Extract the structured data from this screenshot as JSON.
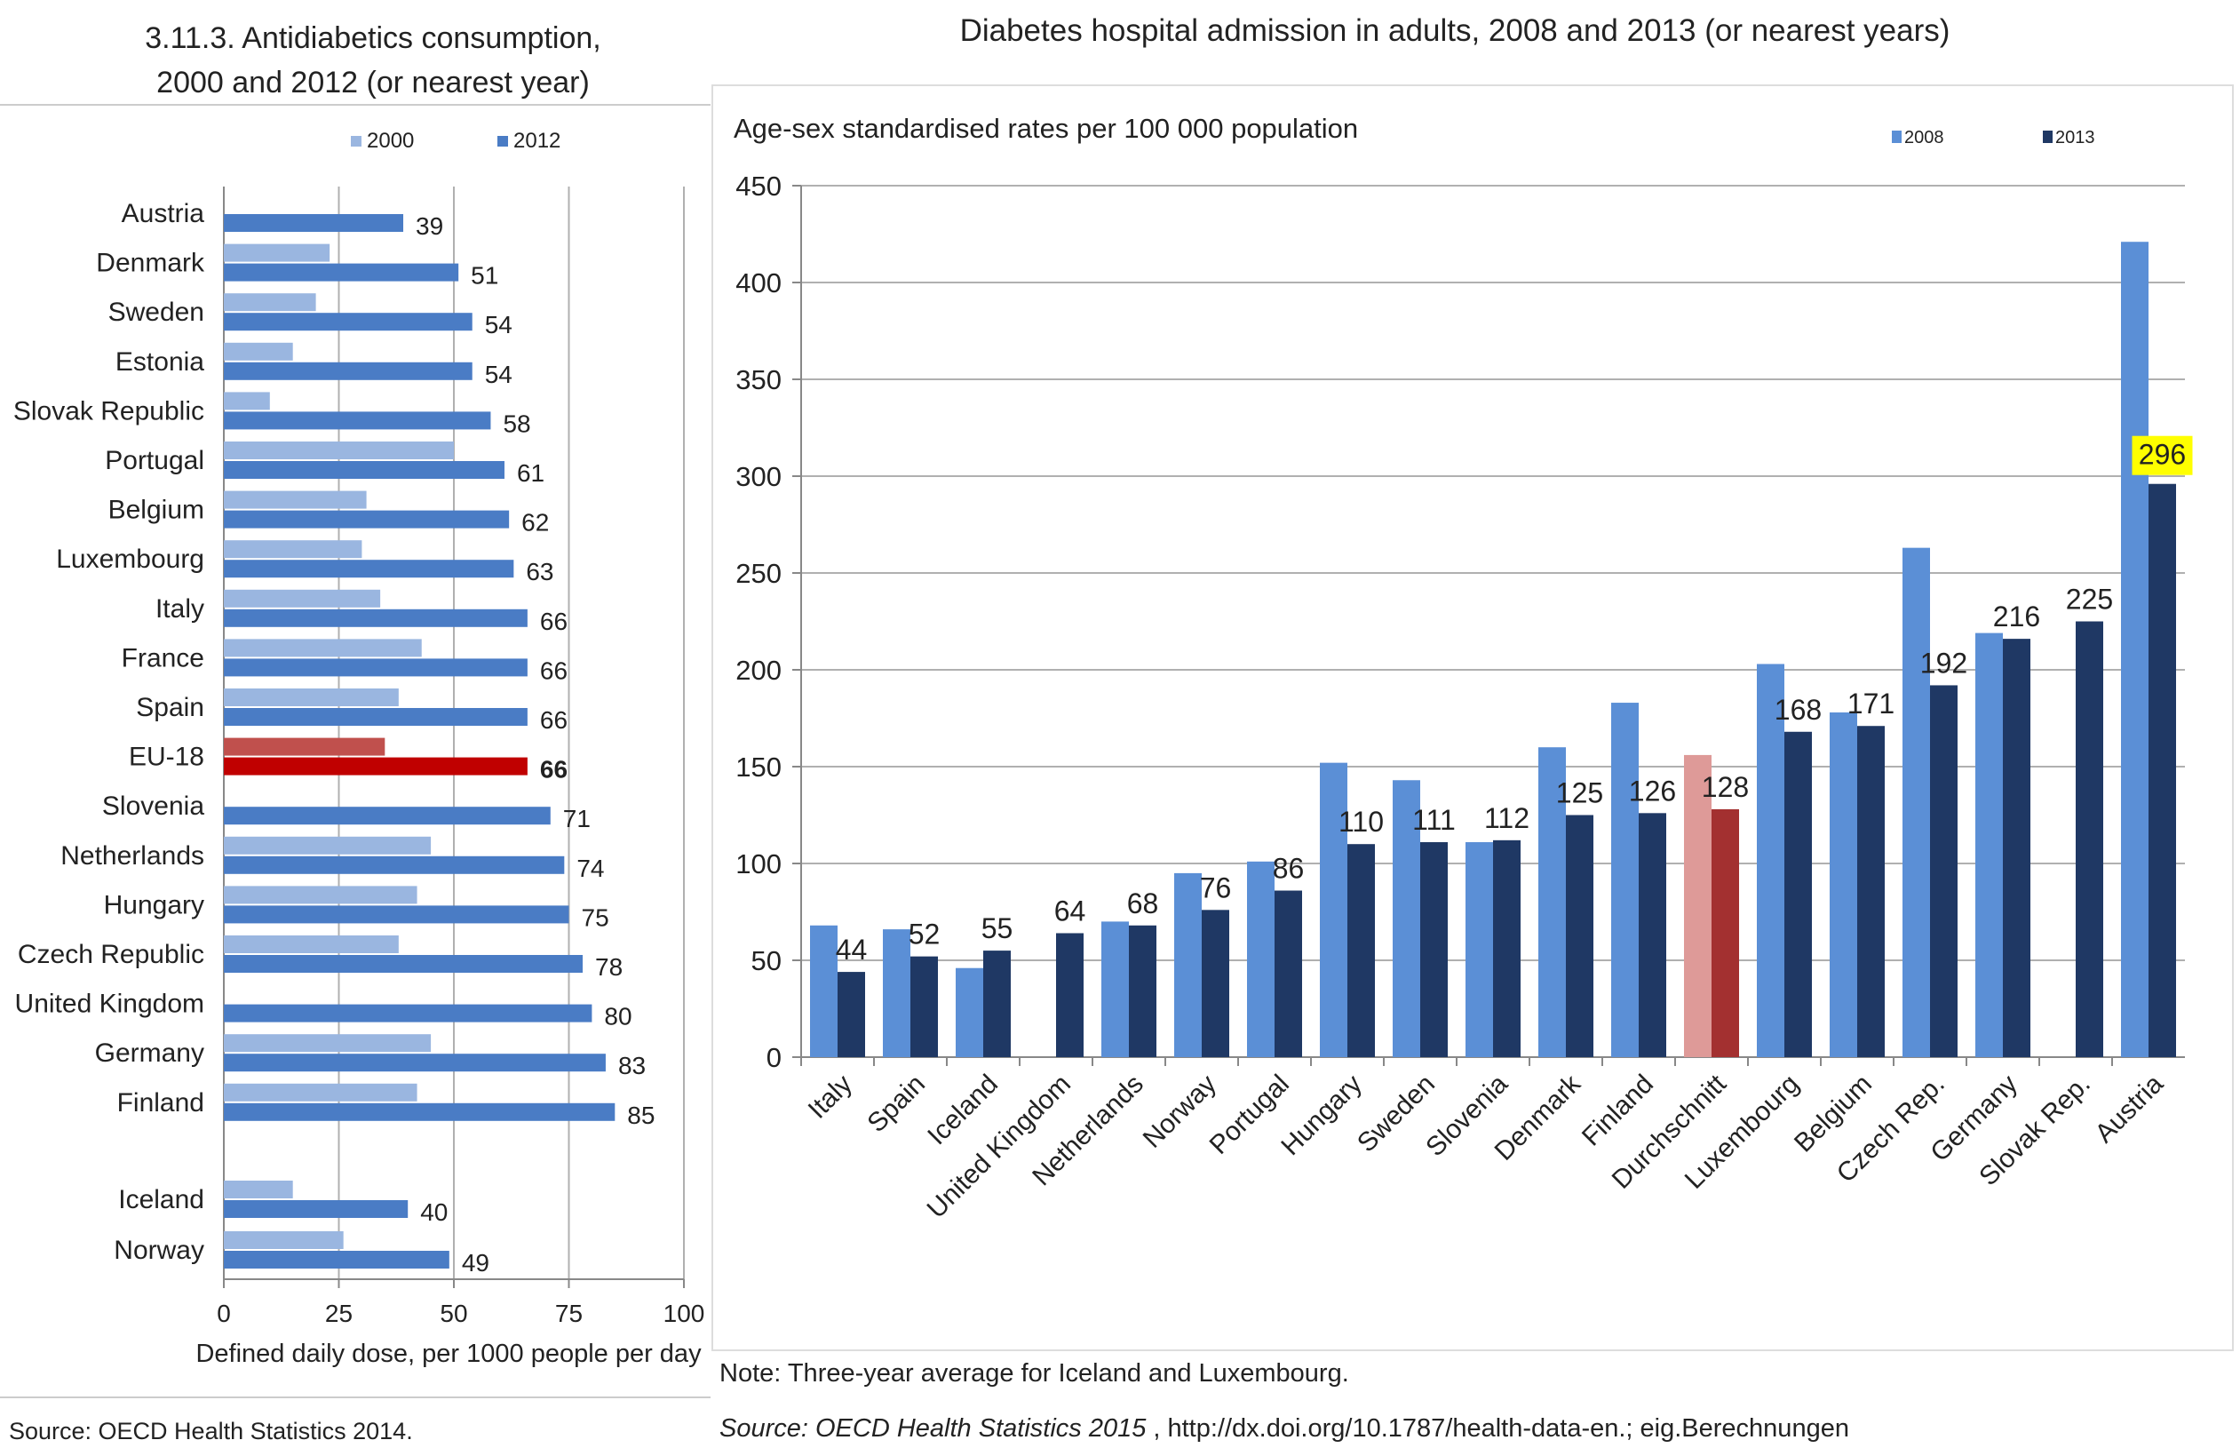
{
  "chart_data": [
    {
      "type": "bar",
      "orientation": "horizontal",
      "title": "3.11.3. Antidiabetics consumption, 2000 and 2012 (or nearest year)",
      "title_lines": [
        "3.11.3. Antidiabetics consumption,",
        "2000 and 2012 (or nearest year)"
      ],
      "xlabel": "Defined daily dose, per 1000 people per day",
      "xlim": [
        0,
        100
      ],
      "xticks": [
        0,
        25,
        50,
        75,
        100
      ],
      "grid": true,
      "legend_position": "top",
      "categories": [
        "Austria",
        "Denmark",
        "Sweden",
        "Estonia",
        "Slovak Republic",
        "Portugal",
        "Belgium",
        "Luxembourg",
        "Italy",
        "France",
        "Spain",
        "EU-18",
        "Slovenia",
        "Netherlands",
        "Hungary",
        "Czech Republic",
        "United Kingdom",
        "Germany",
        "Finland",
        "Iceland",
        "Norway"
      ],
      "highlight": "EU-18",
      "series": [
        {
          "name": "2000",
          "color": "#9ab6e0",
          "highlight_color": "#c0504d",
          "values": [
            null,
            23,
            20,
            15,
            10,
            50,
            31,
            30,
            34,
            43,
            38,
            35,
            null,
            45,
            42,
            38,
            null,
            45,
            42,
            15,
            26
          ]
        },
        {
          "name": "2012",
          "color": "#4a7cc5",
          "highlight_color": "#c00000",
          "values": [
            39,
            51,
            54,
            54,
            58,
            61,
            62,
            63,
            66,
            66,
            66,
            66,
            71,
            74,
            75,
            78,
            80,
            83,
            85,
            40,
            49
          ]
        }
      ],
      "data_labels": [
        "39",
        "51",
        "54",
        "54",
        "58",
        "61",
        "62",
        "63",
        "66",
        "66",
        "66",
        "66",
        "71",
        "74",
        "75",
        "78",
        "80",
        "83",
        "85",
        "40",
        "49"
      ],
      "source": "Source: OECD Health Statistics 2014."
    },
    {
      "type": "bar",
      "orientation": "vertical",
      "title": "Diabetes hospital admission in adults, 2008 and 2013 (or nearest years)",
      "ylabel": "Age-sex standardised rates per 100 000 population",
      "ylim": [
        0,
        450
      ],
      "yticks": [
        0,
        50,
        100,
        150,
        200,
        250,
        300,
        350,
        400,
        450
      ],
      "grid": true,
      "legend_position": "top-right",
      "categories": [
        "Italy",
        "Spain",
        "Iceland",
        "United Kingdom",
        "Netherlands",
        "Norway",
        "Portugal",
        "Hungary",
        "Sweden",
        "Slovenia",
        "Denmark",
        "Finland",
        "Durchschnitt",
        "Luxembourg",
        "Belgium",
        "Czech Rep.",
        "Germany",
        "Slovak Rep.",
        "Austria"
      ],
      "highlight": "Durchschnitt",
      "highlight_label": "296",
      "series": [
        {
          "name": "2008",
          "color": "#5b8fd6",
          "highlight_color": "#de9a98",
          "values": [
            68,
            66,
            46,
            null,
            70,
            95,
            101,
            152,
            143,
            111,
            160,
            183,
            156,
            203,
            178,
            263,
            219,
            null,
            421
          ]
        },
        {
          "name": "2013",
          "color": "#1f3864",
          "highlight_color": "#a33030",
          "values": [
            44,
            52,
            55,
            64,
            68,
            76,
            86,
            110,
            111,
            112,
            125,
            126,
            128,
            168,
            171,
            192,
            216,
            225,
            296
          ]
        }
      ],
      "data_labels": [
        "44",
        "52",
        "55",
        "64",
        "68",
        "76",
        "86",
        "110",
        "111",
        "112",
        "125",
        "126",
        "128",
        "168",
        "171",
        "192",
        "216",
        "225",
        "296"
      ],
      "note": "Note: Three-year average for Iceland and Luxembourg.",
      "source_italic": "Source: OECD Health Statistics 2015",
      "source_rest": " , http://dx.doi.org/10.1787/health-data-en.; eig.Berechnungen"
    }
  ]
}
